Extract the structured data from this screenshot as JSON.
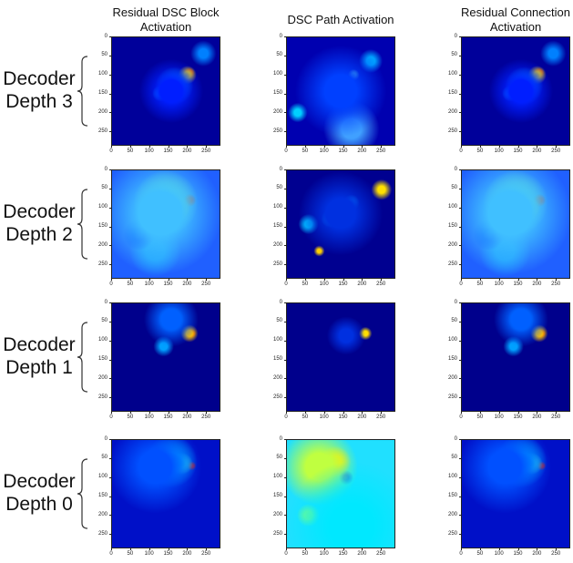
{
  "column_titles": [
    "Residual DSC Block Activation",
    "DSC Path Activation",
    "Residual Connection Activation"
  ],
  "row_labels": [
    "Decoder Depth 3",
    "Decoder Depth 2",
    "Decoder Depth 1",
    "Decoder Depth 0"
  ],
  "axes": {
    "xlim": [
      0,
      288
    ],
    "ylim": [
      0,
      288
    ],
    "xticks": [
      0,
      50,
      100,
      150,
      200,
      250
    ],
    "yticks": [
      0,
      50,
      100,
      150,
      200,
      250
    ]
  }
}
